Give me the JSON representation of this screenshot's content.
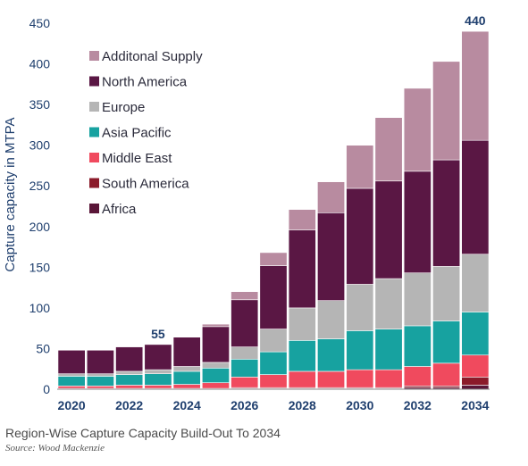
{
  "chart_data": {
    "type": "bar",
    "stacked": true,
    "title": "",
    "xlabel": "",
    "ylabel": "Capture capacity in MTPA",
    "ylim": [
      0,
      450
    ],
    "yticks": [
      0,
      50,
      100,
      150,
      200,
      250,
      300,
      350,
      400,
      450
    ],
    "xtick_labels": [
      "2020",
      "2022",
      "2024",
      "2026",
      "2028",
      "2030",
      "2032",
      "2034"
    ],
    "categories": [
      "2020",
      "2021",
      "2022",
      "2023",
      "2024",
      "2025",
      "2026",
      "2027",
      "2028",
      "2029",
      "2030",
      "2031",
      "2032",
      "2033",
      "2034"
    ],
    "legend_position": "top-left",
    "series": [
      {
        "name": "Africa",
        "color": "#5a1638",
        "values": [
          1,
          1,
          1,
          1,
          1,
          1,
          1,
          1,
          1,
          1,
          1,
          1,
          2,
          2,
          5
        ]
      },
      {
        "name": "South America",
        "color": "#8b1a2a",
        "values": [
          0,
          0,
          0,
          0,
          0,
          0,
          1,
          1,
          1,
          1,
          1,
          1,
          2,
          2,
          10
        ]
      },
      {
        "name": "Middle East",
        "color": "#f04a5e",
        "values": [
          3,
          3,
          4,
          4,
          5,
          7,
          13,
          16,
          20,
          20,
          22,
          22,
          24,
          28,
          27
        ]
      },
      {
        "name": "Asia Pacific",
        "color": "#17a2a0",
        "values": [
          12,
          12,
          13,
          14,
          16,
          18,
          22,
          28,
          38,
          40,
          48,
          50,
          50,
          52,
          53
        ]
      },
      {
        "name": "Europe",
        "color": "#b5b5b5",
        "values": [
          3,
          3,
          4,
          5,
          6,
          7,
          15,
          28,
          40,
          47,
          57,
          62,
          65,
          67,
          71
        ]
      },
      {
        "name": "North America",
        "color": "#5a1744",
        "values": [
          29,
          29,
          30,
          31,
          36,
          44,
          58,
          78,
          96,
          108,
          118,
          120,
          125,
          131,
          140
        ]
      },
      {
        "name": "Additonal Supply",
        "color": "#b88ba0",
        "values": [
          0,
          0,
          0,
          0,
          0,
          3,
          10,
          16,
          25,
          38,
          53,
          78,
          102,
          121,
          134
        ]
      }
    ],
    "totals_labels": [
      {
        "category": "2023",
        "value": "55"
      },
      {
        "category": "2034",
        "value": "440"
      }
    ]
  },
  "caption": "Region-Wise Capture Capacity Build-Out To 2034",
  "source": "Source: Wood Mackenzie"
}
